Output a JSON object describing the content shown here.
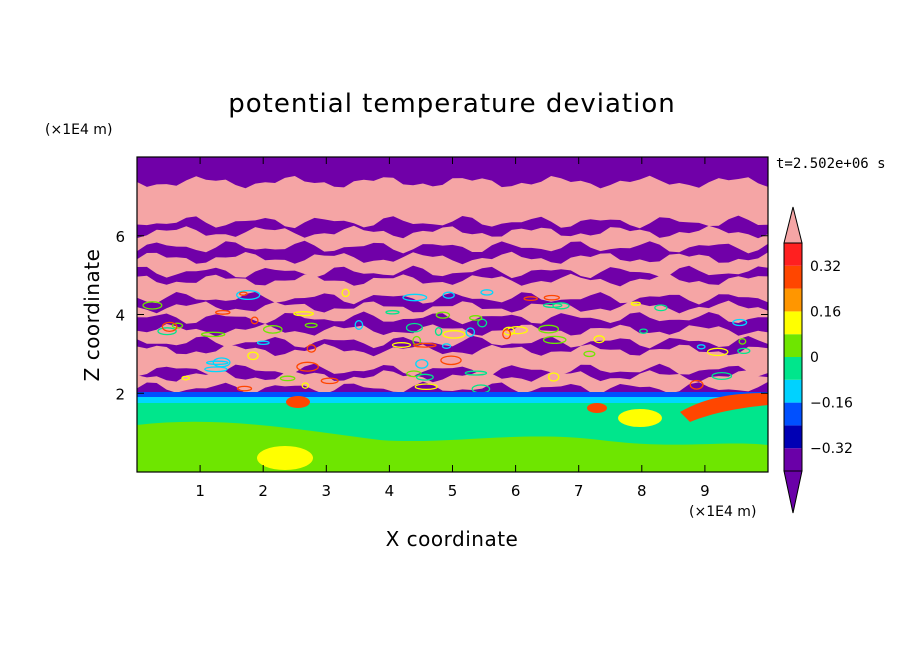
{
  "chart_data": {
    "type": "heatmap",
    "title": "potential temperature deviation",
    "xlabel": "X coordinate",
    "ylabel": "Z coordinate",
    "x_unit": "(×1E4 m)",
    "y_unit": "(×1E4 m)",
    "time_label": "t=2.502e+06 s",
    "xlim": [
      0,
      10
    ],
    "ylim": [
      0,
      8
    ],
    "x_ticks": [
      1,
      2,
      3,
      4,
      5,
      6,
      7,
      8,
      9
    ],
    "x_tick_labels": [
      "1",
      "2",
      "3",
      "4",
      "5",
      "6",
      "7",
      "8",
      "9"
    ],
    "y_ticks": [
      2,
      4,
      6
    ],
    "y_tick_labels": [
      "2",
      "4",
      "6"
    ],
    "grid": false,
    "colorbar": {
      "placement": "right",
      "extend": "both",
      "levels": [
        -0.4,
        -0.32,
        -0.24,
        -0.16,
        -0.08,
        0,
        0.08,
        0.16,
        0.24,
        0.32,
        0.4
      ],
      "colors": [
        "#6a00a8",
        "#0000b4",
        "#0050ff",
        "#00d2ff",
        "#00e68c",
        "#6ee600",
        "#ffff00",
        "#ff9600",
        "#ff4600",
        "#ff2020"
      ],
      "under_color": "#6a00a8",
      "over_color": "#f5a5a5",
      "tick_labels": [
        "0.32",
        "0.16",
        "0",
        "−0.16",
        "−0.32"
      ],
      "tick_values": [
        0.32,
        0.16,
        0,
        -0.16,
        -0.32
      ]
    }
  }
}
